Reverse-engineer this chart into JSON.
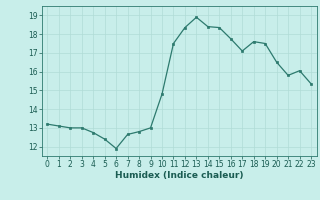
{
  "x": [
    0,
    1,
    2,
    3,
    4,
    5,
    6,
    7,
    8,
    9,
    10,
    11,
    12,
    13,
    14,
    15,
    16,
    17,
    18,
    19,
    20,
    21,
    22,
    23
  ],
  "y": [
    13.2,
    13.1,
    13.0,
    13.0,
    12.75,
    12.4,
    11.9,
    12.65,
    12.8,
    13.0,
    14.8,
    17.5,
    18.35,
    18.9,
    18.4,
    18.35,
    17.75,
    17.1,
    17.6,
    17.5,
    16.5,
    15.8,
    16.05,
    15.35
  ],
  "xlabel": "Humidex (Indice chaleur)",
  "line_color": "#2d7a6e",
  "bg_color": "#c8eeea",
  "grid_color": "#b0dcd6",
  "ylim": [
    11.5,
    19.5
  ],
  "xlim": [
    -0.5,
    23.5
  ],
  "yticks": [
    12,
    13,
    14,
    15,
    16,
    17,
    18,
    19
  ],
  "xticks": [
    0,
    1,
    2,
    3,
    4,
    5,
    6,
    7,
    8,
    9,
    10,
    11,
    12,
    13,
    14,
    15,
    16,
    17,
    18,
    19,
    20,
    21,
    22,
    23
  ],
  "tick_fontsize": 5.5,
  "xlabel_fontsize": 6.5
}
